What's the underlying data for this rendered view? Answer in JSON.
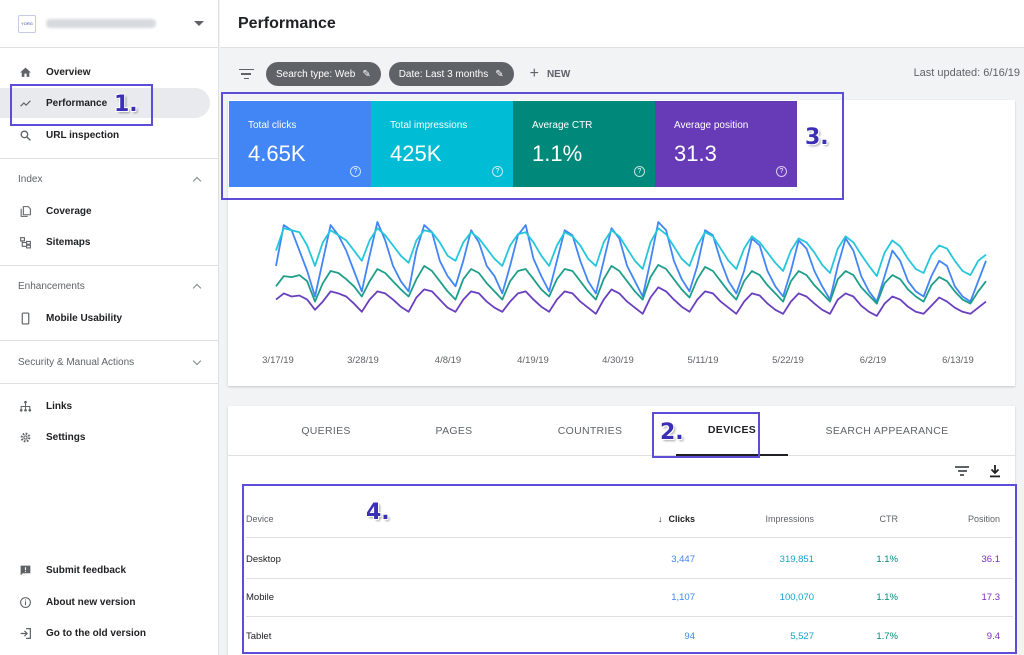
{
  "property": {
    "logo_text": "YORG"
  },
  "nav": {
    "overview": "Overview",
    "performance": "Performance",
    "url_inspection": "URL inspection",
    "index_header": "Index",
    "coverage": "Coverage",
    "sitemaps": "Sitemaps",
    "enhancements_header": "Enhancements",
    "mobile_usability": "Mobile Usability",
    "security_header": "Security & Manual Actions",
    "links": "Links",
    "settings": "Settings",
    "submit_feedback": "Submit feedback",
    "about_new_version": "About new version",
    "old_version": "Go to the old version"
  },
  "header": {
    "title": "Performance"
  },
  "filters": {
    "search_type": "Search type: Web",
    "date": "Date: Last 3 months",
    "new_label": "NEW",
    "last_updated": "Last updated: 6/16/19"
  },
  "metrics": [
    {
      "label": "Total clicks",
      "value": "4.65K",
      "color": "#4285f4"
    },
    {
      "label": "Total impressions",
      "value": "425K",
      "color": "#00bcd4"
    },
    {
      "label": "Average CTR",
      "value": "1.1%",
      "color": "#00897b"
    },
    {
      "label": "Average position",
      "value": "31.3",
      "color": "#673ab7"
    }
  ],
  "chart_data": {
    "type": "line",
    "x_tick_labels": [
      "3/17/19",
      "3/28/19",
      "4/8/19",
      "4/19/19",
      "4/30/19",
      "5/11/19",
      "5/22/19",
      "6/2/19",
      "6/13/19"
    ],
    "series": [
      {
        "color": "#4285f4",
        "values": [
          0.55,
          0.95,
          0.9,
          0.7,
          0.5,
          0.25,
          0.6,
          0.95,
          0.85,
          0.7,
          0.5,
          0.3,
          0.65,
          0.98,
          0.8,
          0.55,
          0.4,
          0.3,
          0.7,
          0.95,
          0.88,
          0.6,
          0.45,
          0.35,
          0.6,
          0.9,
          0.78,
          0.55,
          0.45,
          0.28,
          0.55,
          0.85,
          0.95,
          0.62,
          0.45,
          0.3,
          0.6,
          0.9,
          0.85,
          0.6,
          0.4,
          0.28,
          0.6,
          0.92,
          0.82,
          0.55,
          0.4,
          0.25,
          0.6,
          0.98,
          0.9,
          0.6,
          0.42,
          0.3,
          0.55,
          0.9,
          0.85,
          0.6,
          0.4,
          0.28,
          0.5,
          0.82,
          0.75,
          0.5,
          0.35,
          0.25,
          0.5,
          0.8,
          0.72,
          0.5,
          0.35,
          0.22,
          0.55,
          0.82,
          0.7,
          0.45,
          0.3,
          0.2,
          0.45,
          0.7,
          0.6,
          0.4,
          0.3,
          0.25,
          0.45,
          0.6,
          0.55,
          0.35,
          0.25,
          0.2,
          0.4,
          0.6
        ]
      },
      {
        "color": "#26c6da",
        "values": [
          0.7,
          0.92,
          0.9,
          0.88,
          0.75,
          0.55,
          0.78,
          0.9,
          0.85,
          0.8,
          0.7,
          0.6,
          0.8,
          0.92,
          0.85,
          0.75,
          0.65,
          0.58,
          0.8,
          0.9,
          0.88,
          0.78,
          0.65,
          0.6,
          0.78,
          0.88,
          0.82,
          0.72,
          0.62,
          0.55,
          0.75,
          0.86,
          0.88,
          0.78,
          0.65,
          0.55,
          0.75,
          0.88,
          0.84,
          0.75,
          0.62,
          0.55,
          0.78,
          0.9,
          0.84,
          0.72,
          0.6,
          0.52,
          0.78,
          0.92,
          0.86,
          0.74,
          0.62,
          0.55,
          0.75,
          0.88,
          0.84,
          0.72,
          0.6,
          0.52,
          0.72,
          0.84,
          0.78,
          0.68,
          0.58,
          0.5,
          0.7,
          0.82,
          0.78,
          0.68,
          0.56,
          0.48,
          0.72,
          0.84,
          0.78,
          0.66,
          0.55,
          0.45,
          0.68,
          0.8,
          0.74,
          0.62,
          0.52,
          0.48,
          0.66,
          0.75,
          0.72,
          0.6,
          0.5,
          0.46,
          0.6,
          0.66
        ]
      },
      {
        "color": "#1e9e8a",
        "values": [
          0.35,
          0.45,
          0.44,
          0.46,
          0.4,
          0.2,
          0.38,
          0.5,
          0.48,
          0.42,
          0.35,
          0.25,
          0.4,
          0.52,
          0.48,
          0.4,
          0.32,
          0.25,
          0.42,
          0.55,
          0.5,
          0.4,
          0.3,
          0.22,
          0.42,
          0.52,
          0.48,
          0.38,
          0.3,
          0.22,
          0.4,
          0.5,
          0.52,
          0.42,
          0.32,
          0.25,
          0.42,
          0.52,
          0.5,
          0.4,
          0.3,
          0.22,
          0.42,
          0.55,
          0.5,
          0.4,
          0.3,
          0.22,
          0.44,
          0.56,
          0.52,
          0.42,
          0.32,
          0.24,
          0.42,
          0.54,
          0.5,
          0.4,
          0.3,
          0.22,
          0.4,
          0.5,
          0.46,
          0.36,
          0.28,
          0.2,
          0.4,
          0.5,
          0.46,
          0.36,
          0.28,
          0.2,
          0.42,
          0.5,
          0.46,
          0.34,
          0.26,
          0.18,
          0.38,
          0.46,
          0.42,
          0.32,
          0.25,
          0.2,
          0.36,
          0.44,
          0.4,
          0.3,
          0.22,
          0.18,
          0.3,
          0.4
        ]
      },
      {
        "color": "#6a3fbf",
        "values": [
          0.22,
          0.28,
          0.25,
          0.26,
          0.22,
          0.12,
          0.2,
          0.3,
          0.28,
          0.25,
          0.18,
          0.1,
          0.22,
          0.3,
          0.28,
          0.22,
          0.15,
          0.1,
          0.24,
          0.32,
          0.3,
          0.22,
          0.14,
          0.1,
          0.22,
          0.3,
          0.28,
          0.2,
          0.14,
          0.1,
          0.2,
          0.28,
          0.3,
          0.22,
          0.15,
          0.1,
          0.22,
          0.3,
          0.28,
          0.2,
          0.14,
          0.08,
          0.22,
          0.32,
          0.28,
          0.2,
          0.14,
          0.08,
          0.24,
          0.34,
          0.3,
          0.22,
          0.15,
          0.1,
          0.22,
          0.3,
          0.28,
          0.2,
          0.14,
          0.08,
          0.2,
          0.28,
          0.26,
          0.18,
          0.12,
          0.08,
          0.2,
          0.28,
          0.25,
          0.18,
          0.12,
          0.08,
          0.22,
          0.28,
          0.25,
          0.16,
          0.1,
          0.06,
          0.18,
          0.25,
          0.22,
          0.15,
          0.1,
          0.08,
          0.16,
          0.24,
          0.2,
          0.14,
          0.1,
          0.08,
          0.14,
          0.2
        ]
      }
    ]
  },
  "tabs": [
    "QUERIES",
    "PAGES",
    "COUNTRIES",
    "DEVICES",
    "SEARCH APPEARANCE"
  ],
  "table": {
    "headers": {
      "device": "Device",
      "clicks": "Clicks",
      "impressions": "Impressions",
      "ctr": "CTR",
      "position": "Position"
    },
    "rows": [
      {
        "device": "Desktop",
        "clicks": "3,447",
        "impressions": "319,851",
        "ctr": "1.1%",
        "position": "36.1"
      },
      {
        "device": "Mobile",
        "clicks": "1,107",
        "impressions": "100,070",
        "ctr": "1.1%",
        "position": "17.3"
      },
      {
        "device": "Tablet",
        "clicks": "94",
        "impressions": "5,527",
        "ctr": "1.7%",
        "position": "9.4"
      }
    ]
  },
  "annotations": [
    "1.",
    "2.",
    "3.",
    "4."
  ]
}
